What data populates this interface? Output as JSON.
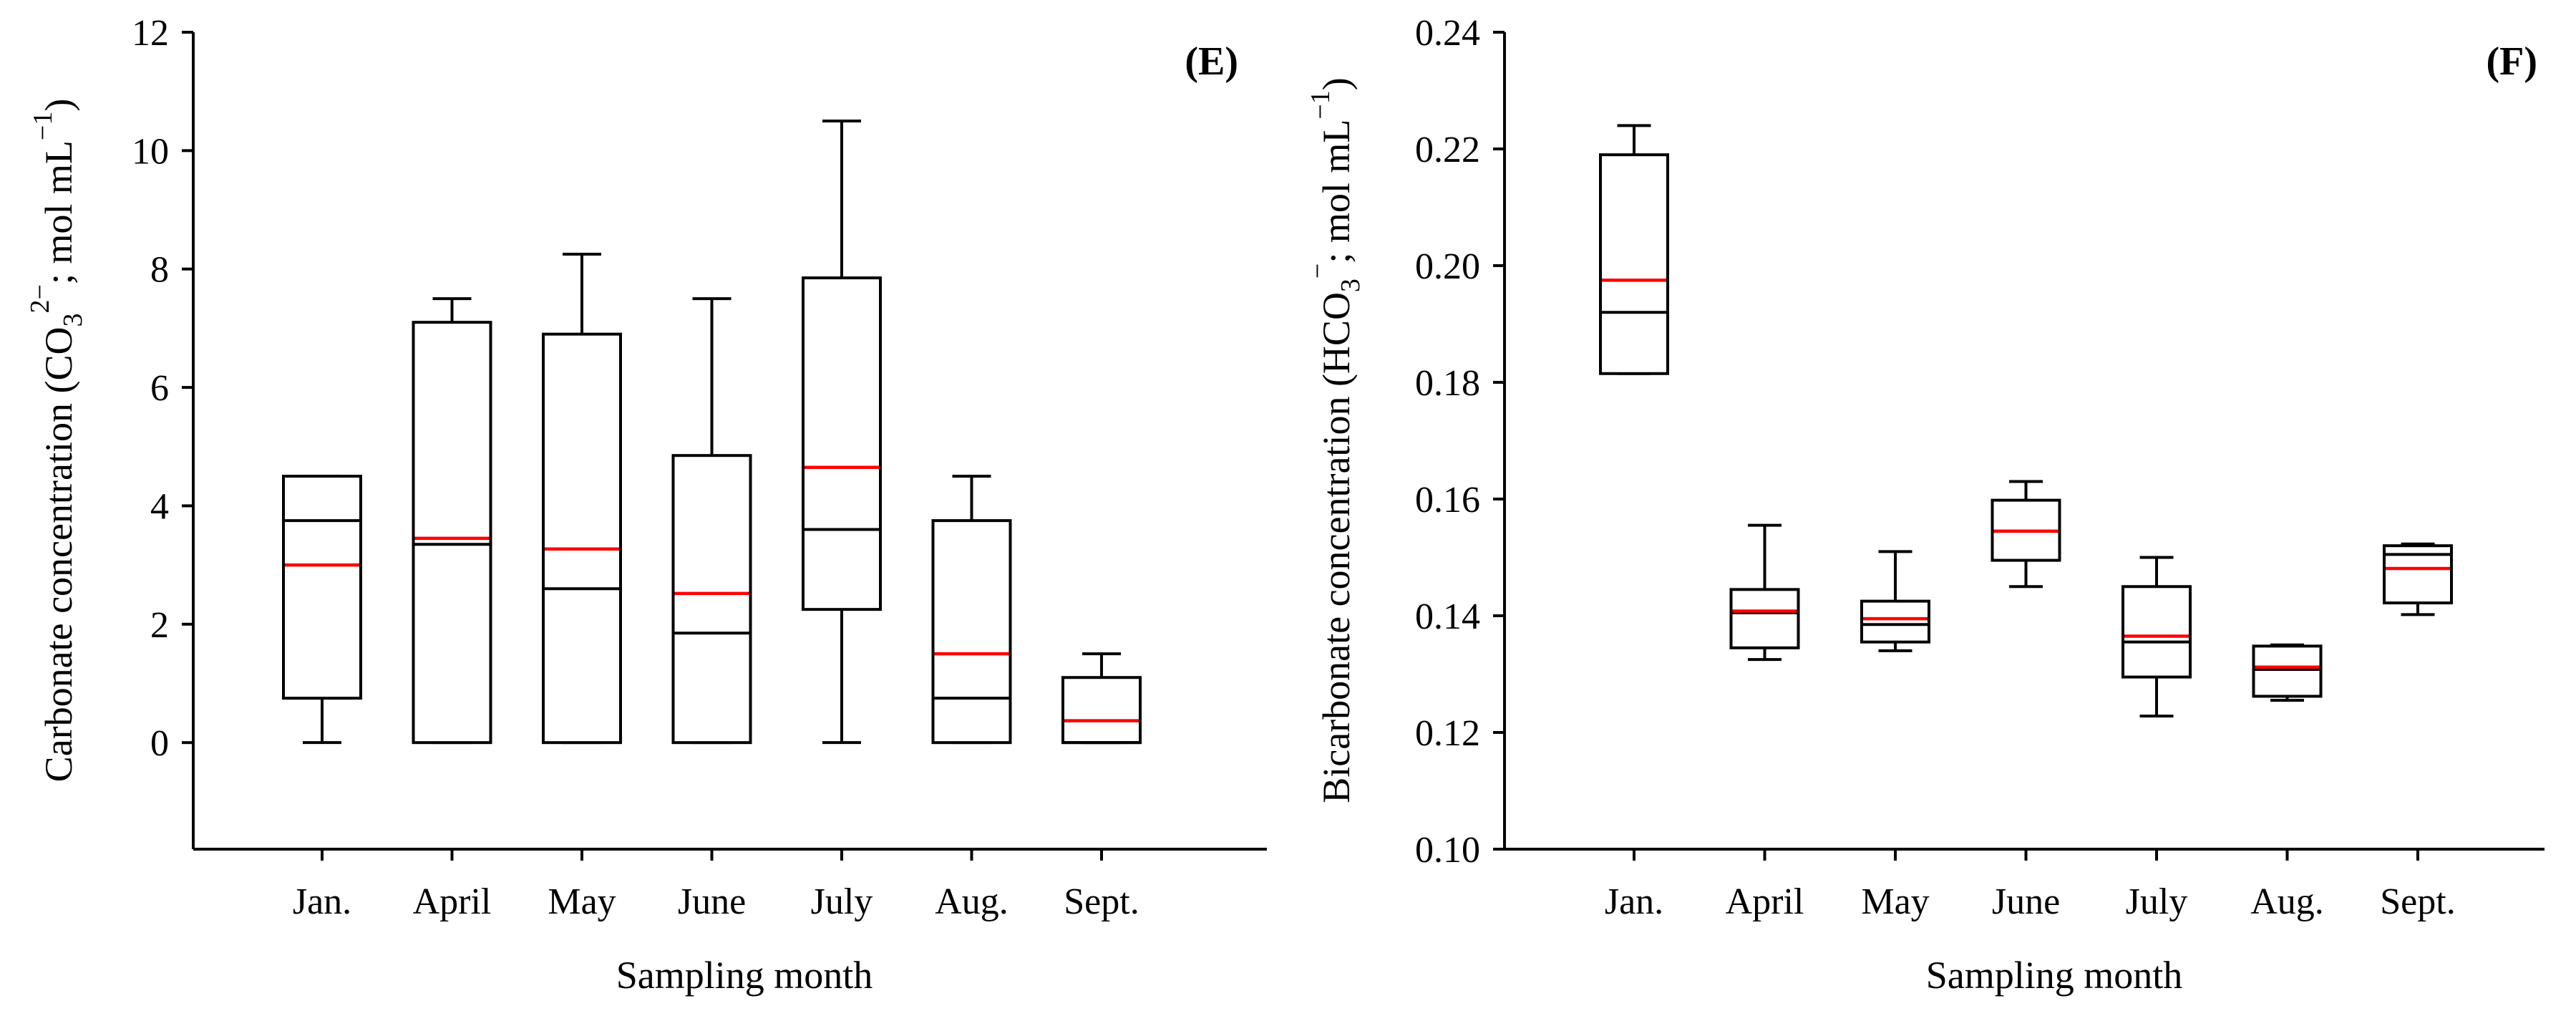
{
  "chart_data": [
    {
      "type": "box",
      "panel": "(E)",
      "xlabel": "Sampling month",
      "ylabel_parts": {
        "pre": "Carbonate concentration (CO",
        "sub": "3",
        "sup": "2−",
        "post": "; mol mL",
        "unit_sup": "−1",
        "close": ")"
      },
      "ylim": [
        -1.8,
        12
      ],
      "yticks": [
        0,
        2,
        4,
        6,
        8,
        10,
        12
      ],
      "ytick_labels": [
        "0",
        "2",
        "4",
        "6",
        "8",
        "10",
        "12"
      ],
      "categories": [
        "Jan.",
        "April",
        "May",
        "June",
        "July",
        "Aug.",
        "Sept."
      ],
      "boxes": [
        {
          "min": 0,
          "q1": 0.75,
          "median": 3.75,
          "q3": 4.5,
          "max": 4.5,
          "mean": 3.0
        },
        {
          "min": 0,
          "q1": 0,
          "median": 3.35,
          "q3": 7.1,
          "max": 7.5,
          "mean": 3.45
        },
        {
          "min": 0,
          "q1": 0,
          "median": 2.6,
          "q3": 6.9,
          "max": 8.25,
          "mean": 3.27
        },
        {
          "min": 0,
          "q1": 0,
          "median": 1.85,
          "q3": 4.85,
          "max": 7.5,
          "mean": 2.52
        },
        {
          "min": 0,
          "q1": 2.25,
          "median": 3.6,
          "q3": 7.85,
          "max": 10.5,
          "mean": 4.65
        },
        {
          "min": 0,
          "q1": 0,
          "median": 0.75,
          "q3": 3.75,
          "max": 4.5,
          "mean": 1.5
        },
        {
          "min": 0,
          "q1": 0,
          "median": 0,
          "q3": 1.1,
          "max": 1.5,
          "mean": 0.37
        }
      ]
    },
    {
      "type": "box",
      "panel": "(F)",
      "xlabel": "Sampling month",
      "ylabel_parts": {
        "pre": "Bicarbonate concentration (HCO",
        "sub": "3",
        "sup": "−",
        "post": "; mol mL",
        "unit_sup": "−1",
        "close": ")"
      },
      "ylim": [
        0.1,
        0.24
      ],
      "yticks": [
        0.1,
        0.12,
        0.14,
        0.16,
        0.18,
        0.2,
        0.22,
        0.24
      ],
      "ytick_labels": [
        "0.10",
        "0.12",
        "0.14",
        "0.16",
        "0.18",
        "0.20",
        "0.22",
        "0.24"
      ],
      "categories": [
        "Jan.",
        "April",
        "May",
        "June",
        "July",
        "Aug.",
        "Sept."
      ],
      "boxes": [
        {
          "min": 0.1815,
          "q1": 0.1815,
          "median": 0.192,
          "q3": 0.219,
          "max": 0.224,
          "mean": 0.1975
        },
        {
          "min": 0.1325,
          "q1": 0.1345,
          "median": 0.1405,
          "q3": 0.1445,
          "max": 0.1555,
          "mean": 0.1408
        },
        {
          "min": 0.134,
          "q1": 0.1355,
          "median": 0.1385,
          "q3": 0.1425,
          "max": 0.151,
          "mean": 0.1395
        },
        {
          "min": 0.145,
          "q1": 0.1495,
          "median": 0.1545,
          "q3": 0.1598,
          "max": 0.163,
          "mean": 0.1545
        },
        {
          "min": 0.1228,
          "q1": 0.1295,
          "median": 0.1355,
          "q3": 0.145,
          "max": 0.15,
          "mean": 0.1365
        },
        {
          "min": 0.1255,
          "q1": 0.1262,
          "median": 0.1308,
          "q3": 0.1348,
          "max": 0.135,
          "mean": 0.1312
        },
        {
          "min": 0.1402,
          "q1": 0.1422,
          "median": 0.1505,
          "q3": 0.152,
          "max": 0.1523,
          "mean": 0.1481
        }
      ]
    }
  ],
  "colors": {
    "mean_line": "#ff0000",
    "box_line": "#000000"
  }
}
